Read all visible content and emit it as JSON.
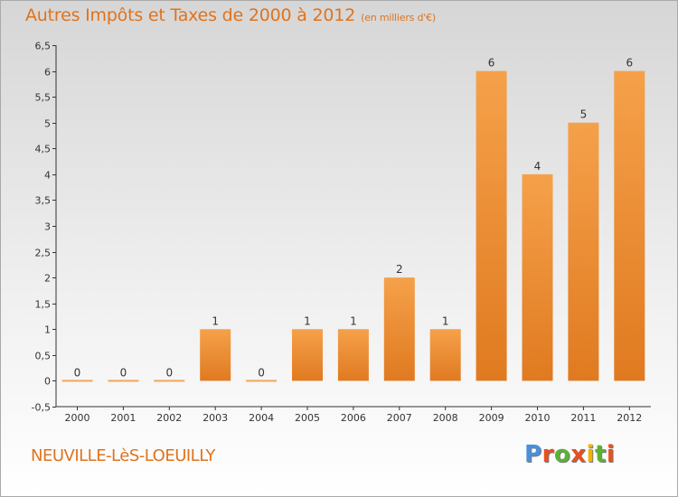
{
  "title": "Autres Impôts et Taxes de 2000 à 2012",
  "subtitle": "(en milliers d'€)",
  "commune": "NEUVILLE-LèS-LOEUILLY",
  "brand": {
    "text": "Proxiti",
    "letter_colors": [
      "#4a90d9",
      "#e8501e",
      "#5bb233",
      "#e8501e",
      "#f0b400",
      "#5bb233",
      "#e8501e"
    ]
  },
  "colors": {
    "bar_top": "#f5a14a",
    "bar_bottom": "#e07a20",
    "bar_zero": "#f3a558",
    "text": "#e0731c",
    "axis": "#333333"
  },
  "chart_data": {
    "type": "bar",
    "categories": [
      "2000",
      "2001",
      "2002",
      "2003",
      "2004",
      "2005",
      "2006",
      "2007",
      "2008",
      "2009",
      "2010",
      "2011",
      "2012"
    ],
    "values": [
      0,
      0,
      0,
      1,
      0,
      1,
      1,
      2,
      1,
      6,
      4,
      5,
      6
    ],
    "data_labels": [
      "0",
      "0",
      "0",
      "1",
      "0",
      "1",
      "1",
      "2",
      "1",
      "6",
      "4",
      "5",
      "6"
    ],
    "ylim": [
      -0.5,
      6.5
    ],
    "yticks": [
      -0.5,
      0,
      0.5,
      1,
      1.5,
      2,
      2.5,
      3,
      3.5,
      4,
      4.5,
      5,
      5.5,
      6,
      6.5
    ],
    "ytick_labels": [
      "-0,5",
      "0",
      "0,5",
      "1",
      "1,5",
      "2",
      "2,5",
      "3",
      "3,5",
      "4",
      "4,5",
      "5",
      "5,5",
      "6",
      "6,5"
    ],
    "grid": false,
    "legend": "none"
  }
}
